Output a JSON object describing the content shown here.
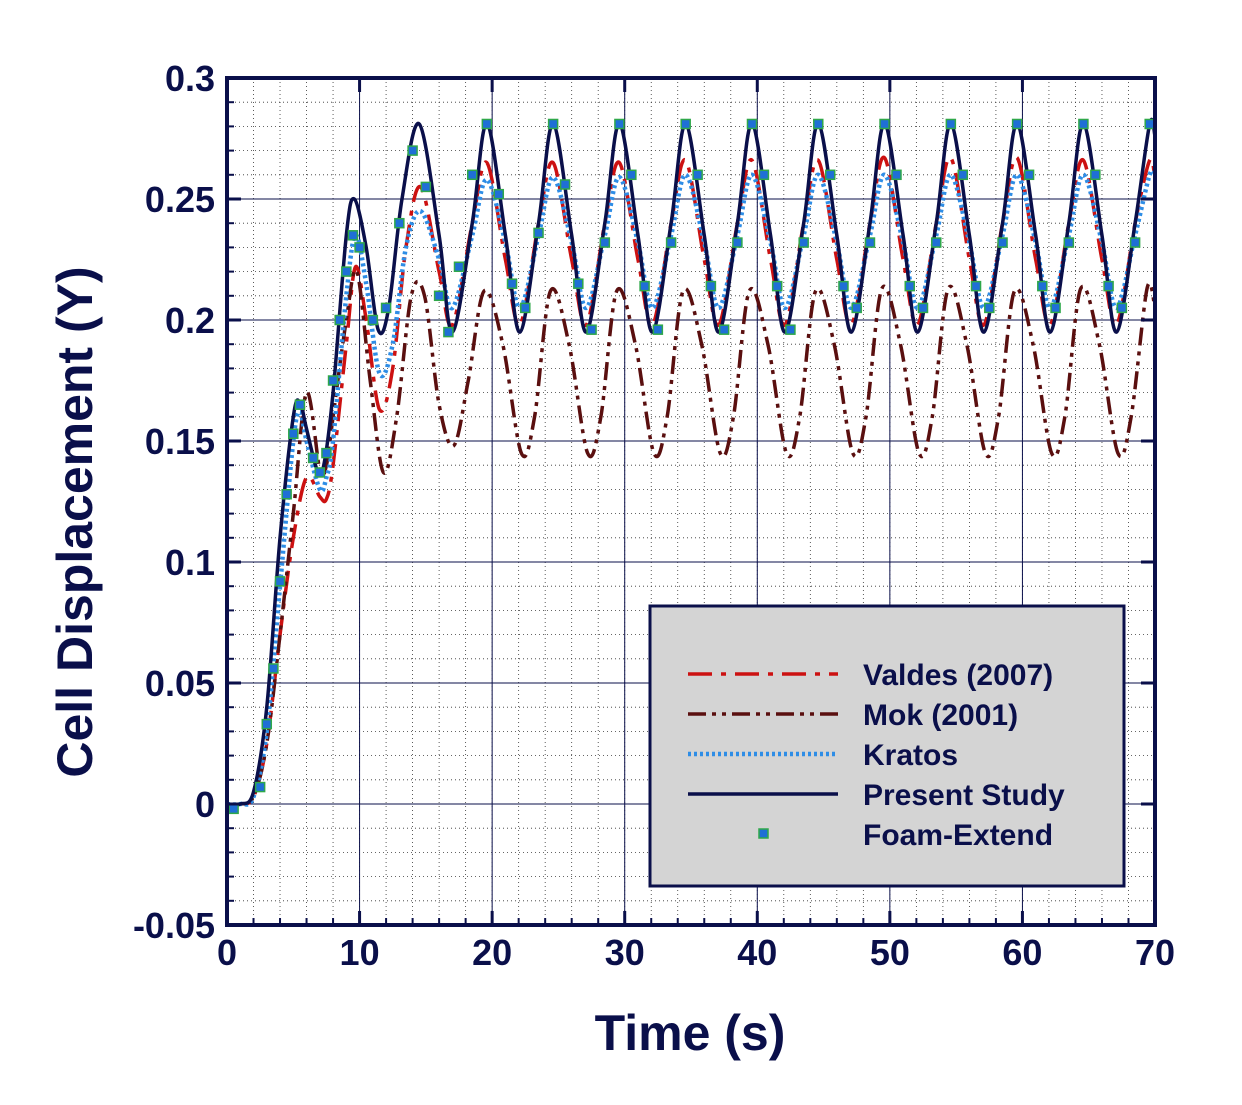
{
  "chart_data": {
    "type": "line",
    "xlabel": "Time (s)",
    "ylabel": "Cell Displacement (Y)",
    "xlim": [
      0,
      70
    ],
    "ylim": [
      -0.05,
      0.3
    ],
    "x_ticks": [
      0,
      10,
      20,
      30,
      40,
      50,
      60,
      70
    ],
    "x_tick_labels": [
      "0",
      "10",
      "20",
      "30",
      "40",
      "50",
      "60",
      "70"
    ],
    "y_ticks": [
      -0.05,
      0,
      0.05,
      0.1,
      0.15,
      0.2,
      0.25,
      0.3
    ],
    "y_tick_labels": [
      "-0.05",
      "0",
      "0.05",
      "0.1",
      "0.15",
      "0.2",
      "0.25",
      "0.3"
    ],
    "grid": true,
    "legend_position": "bottom-right",
    "colors": {
      "axis": "#0a0f4a",
      "legend_bg": "#d4d4d4",
      "valdes": "#cc1111",
      "mok": "#5a0f0f",
      "kratos": "#2e8de6",
      "present": "#0a0f4a",
      "foam_fill": "#1f6fd6",
      "foam_edge": "#2fa84a"
    },
    "series": [
      {
        "name": "Valdes (2007)",
        "style": "dash-dot",
        "x": [
          0,
          1,
          2,
          3,
          4,
          5,
          6,
          7,
          7.5,
          8,
          9,
          9.7,
          10.5,
          11.5,
          12.5,
          13.5,
          14.6,
          16,
          17,
          18.5,
          19.6,
          21,
          22.1,
          23.5,
          24.6,
          26,
          27.1,
          28.5,
          29.6,
          31,
          32.1,
          33.5,
          34.6,
          36,
          37.1,
          38.5,
          39.6,
          41,
          42.1,
          43.5,
          44.6,
          46,
          47.1,
          48.5,
          49.6,
          51,
          52.1,
          53.5,
          54.6,
          56,
          57.1,
          58.5,
          59.6,
          61,
          62.1,
          63.5,
          64.6,
          66,
          67.1,
          68.5,
          69.6,
          70
        ],
        "y": [
          0,
          0,
          0.003,
          0.025,
          0.07,
          0.11,
          0.135,
          0.127,
          0.126,
          0.14,
          0.19,
          0.222,
          0.2,
          0.163,
          0.18,
          0.23,
          0.255,
          0.22,
          0.198,
          0.24,
          0.265,
          0.225,
          0.198,
          0.24,
          0.265,
          0.225,
          0.198,
          0.24,
          0.265,
          0.225,
          0.198,
          0.24,
          0.266,
          0.225,
          0.198,
          0.24,
          0.266,
          0.225,
          0.198,
          0.24,
          0.266,
          0.225,
          0.198,
          0.24,
          0.267,
          0.225,
          0.198,
          0.24,
          0.267,
          0.225,
          0.198,
          0.24,
          0.267,
          0.225,
          0.198,
          0.24,
          0.266,
          0.225,
          0.198,
          0.24,
          0.266,
          0.258
        ]
      },
      {
        "name": "Mok (2001)",
        "style": "dash-dot-dot",
        "x": [
          0,
          1,
          2,
          3,
          4,
          5,
          6,
          7,
          7.5,
          8,
          9,
          9.8,
          10.8,
          11.8,
          12.8,
          13.9,
          14.9,
          16,
          17.1,
          18.2,
          19.4,
          20.8,
          22.2,
          23.2,
          24.4,
          25.8,
          27.2,
          28.2,
          29.4,
          30.8,
          32.2,
          33.2,
          34.4,
          35.8,
          37.2,
          38.2,
          39.4,
          40.8,
          42.2,
          43.2,
          44.4,
          45.8,
          47.2,
          48.2,
          49.4,
          50.8,
          52.2,
          53.2,
          54.4,
          55.8,
          57.2,
          58.2,
          59.4,
          60.8,
          62.2,
          63.2,
          64.4,
          65.8,
          67.2,
          68.2,
          69.4,
          70
        ],
        "y": [
          0,
          0,
          0.003,
          0.025,
          0.07,
          0.12,
          0.17,
          0.138,
          0.14,
          0.16,
          0.2,
          0.22,
          0.175,
          0.137,
          0.16,
          0.21,
          0.21,
          0.165,
          0.148,
          0.175,
          0.212,
          0.19,
          0.145,
          0.16,
          0.212,
          0.19,
          0.145,
          0.16,
          0.212,
          0.19,
          0.145,
          0.16,
          0.212,
          0.19,
          0.145,
          0.16,
          0.212,
          0.19,
          0.145,
          0.16,
          0.212,
          0.19,
          0.145,
          0.16,
          0.213,
          0.19,
          0.145,
          0.16,
          0.213,
          0.19,
          0.145,
          0.16,
          0.212,
          0.19,
          0.145,
          0.16,
          0.213,
          0.19,
          0.145,
          0.16,
          0.213,
          0.205
        ]
      },
      {
        "name": "Kratos",
        "style": "dotted",
        "x": [
          0,
          1,
          2,
          3,
          4,
          5,
          5.5,
          6,
          7,
          7.5,
          8,
          9,
          9.7,
          10.5,
          11.5,
          12.5,
          13.5,
          14.6,
          16,
          17,
          18.5,
          19.6,
          21,
          22.1,
          23.5,
          24.6,
          26,
          27.1,
          28.5,
          29.6,
          31,
          32.1,
          33.5,
          34.6,
          36,
          37.1,
          38.5,
          39.6,
          41,
          42.1,
          43.5,
          44.6,
          46,
          47.1,
          48.5,
          49.6,
          51,
          52.1,
          53.5,
          54.6,
          56,
          57.1,
          58.5,
          59.6,
          61,
          62.1,
          63.5,
          64.6,
          66,
          67.1,
          68.5,
          69.6,
          70
        ],
        "y": [
          0,
          0,
          0.003,
          0.03,
          0.09,
          0.15,
          0.162,
          0.15,
          0.13,
          0.135,
          0.15,
          0.21,
          0.235,
          0.215,
          0.178,
          0.19,
          0.23,
          0.245,
          0.225,
          0.205,
          0.235,
          0.258,
          0.232,
          0.205,
          0.235,
          0.259,
          0.232,
          0.205,
          0.235,
          0.259,
          0.232,
          0.205,
          0.235,
          0.26,
          0.232,
          0.205,
          0.235,
          0.26,
          0.232,
          0.205,
          0.235,
          0.26,
          0.232,
          0.205,
          0.235,
          0.26,
          0.232,
          0.205,
          0.235,
          0.26,
          0.232,
          0.205,
          0.235,
          0.26,
          0.232,
          0.205,
          0.235,
          0.26,
          0.232,
          0.205,
          0.235,
          0.26,
          0.26
        ]
      },
      {
        "name": "Present Study",
        "style": "solid",
        "x": [
          0,
          1,
          2,
          3,
          4,
          5,
          5.5,
          6,
          6.8,
          7.3,
          8,
          9,
          9.6,
          10.5,
          11.4,
          12.2,
          13.2,
          14.5,
          16,
          17,
          18.5,
          19.6,
          21,
          22.1,
          23.5,
          24.6,
          26,
          27.1,
          28.5,
          29.6,
          31,
          32.1,
          33.5,
          34.6,
          36,
          37.1,
          38.5,
          39.6,
          41,
          42.1,
          43.5,
          44.6,
          46,
          47.1,
          48.5,
          49.6,
          51,
          52.1,
          53.5,
          54.6,
          56,
          57.1,
          58.5,
          59.6,
          61,
          62.1,
          63.5,
          64.6,
          66,
          67.1,
          68.5,
          69.6,
          70
        ],
        "y": [
          0,
          0,
          0.005,
          0.04,
          0.11,
          0.16,
          0.166,
          0.155,
          0.138,
          0.14,
          0.17,
          0.235,
          0.25,
          0.23,
          0.196,
          0.205,
          0.25,
          0.281,
          0.235,
          0.195,
          0.24,
          0.281,
          0.235,
          0.195,
          0.24,
          0.281,
          0.235,
          0.195,
          0.24,
          0.281,
          0.235,
          0.195,
          0.24,
          0.281,
          0.235,
          0.195,
          0.24,
          0.281,
          0.235,
          0.195,
          0.24,
          0.281,
          0.235,
          0.195,
          0.24,
          0.281,
          0.235,
          0.195,
          0.24,
          0.281,
          0.235,
          0.195,
          0.24,
          0.281,
          0.235,
          0.195,
          0.24,
          0.281,
          0.235,
          0.195,
          0.24,
          0.281,
          0.276
        ]
      },
      {
        "name": "Foam-Extend",
        "style": "markers",
        "x": [
          0.5,
          2.5,
          3,
          3.5,
          4,
          4.5,
          5,
          5.5,
          6.5,
          7,
          7.5,
          8,
          8.5,
          9,
          9.5,
          10,
          11,
          12,
          13,
          14,
          15,
          16,
          16.7,
          17.5,
          18.5,
          19.6,
          20.5,
          21.5,
          22.5,
          23.5,
          24.6,
          25.5,
          26.5,
          27.5,
          28.5,
          29.6,
          30.5,
          31.5,
          32.5,
          33.5,
          34.6,
          35.5,
          36.5,
          37.5,
          38.5,
          39.6,
          40.5,
          41.5,
          42.5,
          43.5,
          44.6,
          45.5,
          46.5,
          47.5,
          48.5,
          49.6,
          50.5,
          51.5,
          52.5,
          53.5,
          54.6,
          55.5,
          56.5,
          57.5,
          58.5,
          59.6,
          60.5,
          61.5,
          62.5,
          63.5,
          64.6,
          65.5,
          66.5,
          67.5,
          68.5,
          69.6
        ],
        "y": [
          -0.002,
          0.007,
          0.033,
          0.056,
          0.092,
          0.128,
          0.153,
          0.165,
          0.143,
          0.137,
          0.145,
          0.175,
          0.2,
          0.22,
          0.235,
          0.23,
          0.2,
          0.205,
          0.24,
          0.27,
          0.255,
          0.21,
          0.195,
          0.222,
          0.26,
          0.281,
          0.252,
          0.215,
          0.205,
          0.236,
          0.281,
          0.256,
          0.215,
          0.196,
          0.232,
          0.281,
          0.26,
          0.214,
          0.196,
          0.232,
          0.281,
          0.26,
          0.214,
          0.196,
          0.232,
          0.281,
          0.26,
          0.214,
          0.196,
          0.232,
          0.281,
          0.26,
          0.214,
          0.205,
          0.232,
          0.281,
          0.26,
          0.214,
          0.205,
          0.232,
          0.281,
          0.26,
          0.214,
          0.205,
          0.232,
          0.281,
          0.26,
          0.214,
          0.205,
          0.232,
          0.281,
          0.26,
          0.214,
          0.205,
          0.232,
          0.281
        ]
      }
    ]
  }
}
